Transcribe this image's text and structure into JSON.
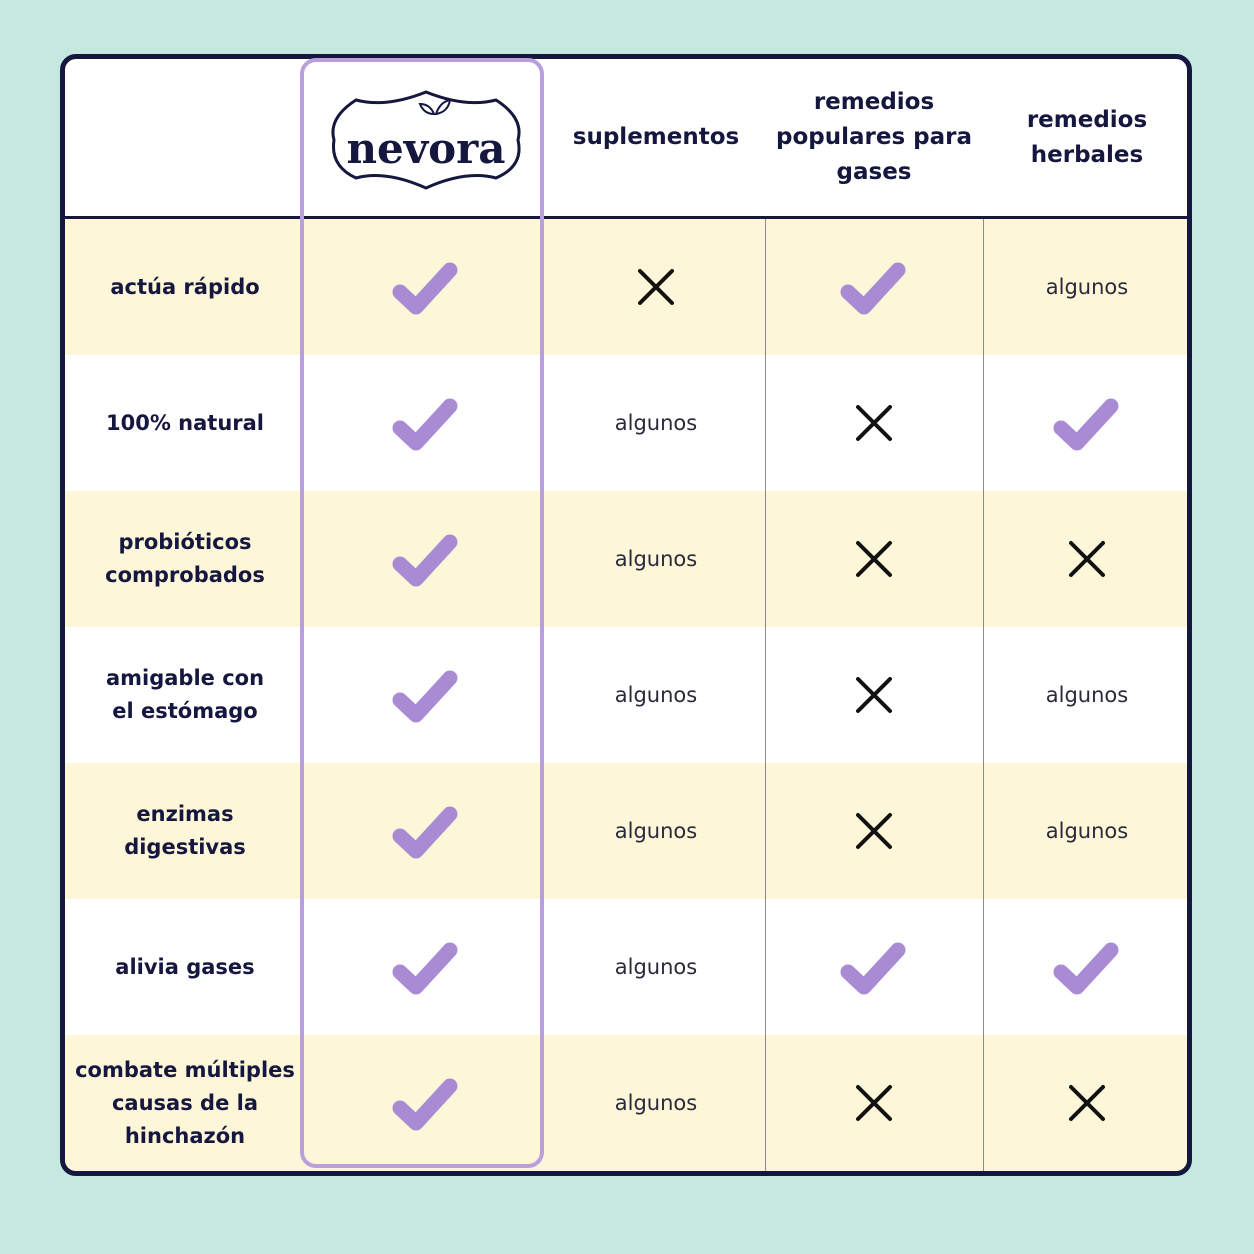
{
  "header": {
    "brand": "nevora",
    "columns": [
      [
        "suplementos"
      ],
      [
        "remedios",
        "populares para",
        "gases"
      ],
      [
        "remedios",
        "herbales"
      ]
    ]
  },
  "table": {
    "rows": [
      {
        "label": [
          "actúa rápido"
        ],
        "cells": [
          true,
          false,
          true,
          "algunos"
        ]
      },
      {
        "label": [
          "100% natural"
        ],
        "cells": [
          true,
          "algunos",
          false,
          true
        ]
      },
      {
        "label": [
          "probióticos",
          "comprobados"
        ],
        "cells": [
          true,
          "algunos",
          false,
          false
        ]
      },
      {
        "label": [
          "amigable con",
          "el estómago"
        ],
        "cells": [
          true,
          "algunos",
          false,
          "algunos"
        ]
      },
      {
        "label": [
          "enzimas",
          "digestivas"
        ],
        "cells": [
          true,
          "algunos",
          false,
          "algunos"
        ]
      },
      {
        "label": [
          "alivia gases"
        ],
        "cells": [
          true,
          "algunos",
          true,
          true
        ]
      },
      {
        "label": [
          "combate múltiples",
          "causas de la",
          "hinchazón"
        ],
        "cells": [
          true,
          "algunos",
          false,
          false
        ]
      }
    ]
  }
}
